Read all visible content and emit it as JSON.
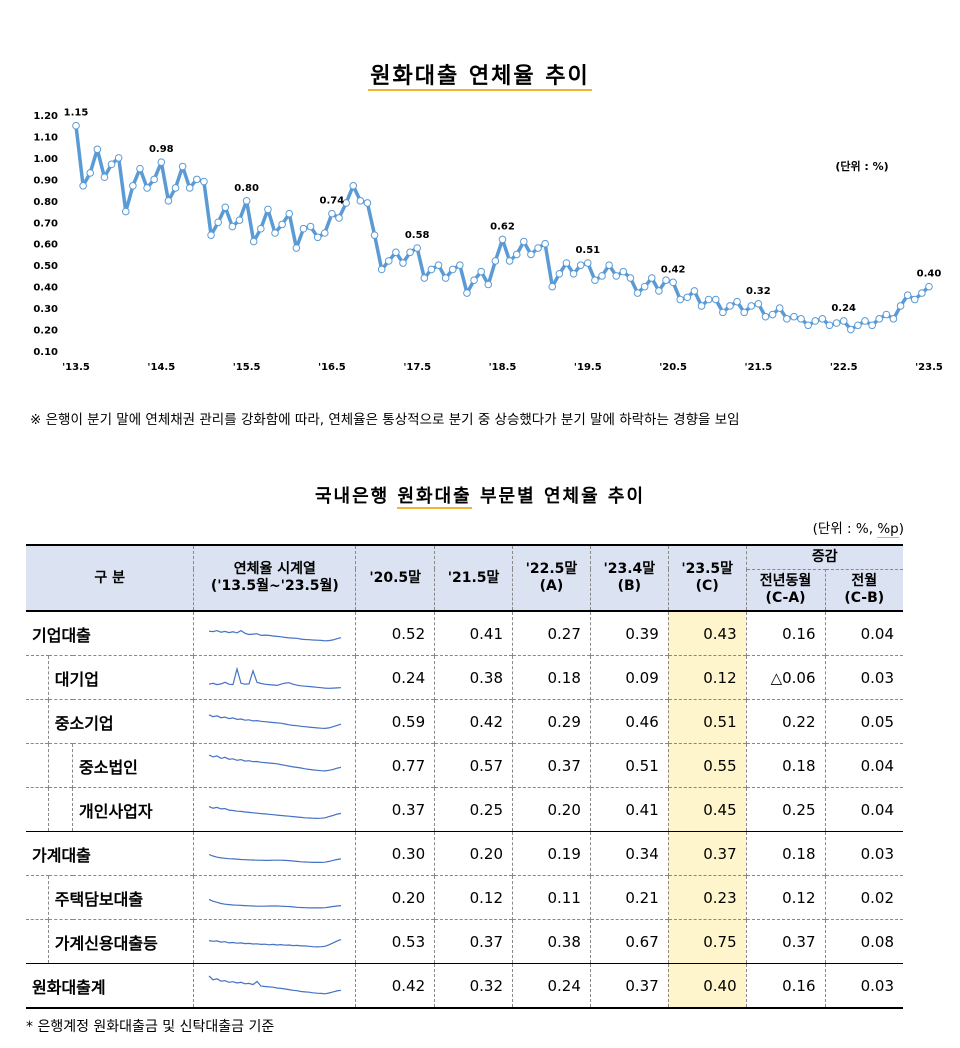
{
  "chart_title": "원화대출 연체율 추이",
  "note": "※ 은행이 분기 말에 연체채권 관리를 강화함에 따라, 연체율은 통상적으로 분기 중 상승했다가 분기 말에 하락하는 경향을 보임",
  "chart_data": {
    "type": "line",
    "title": "원화대출 연체율 추이",
    "unit_label": "(단위 : %)",
    "ylim": [
      0.1,
      1.2
    ],
    "yticks": [
      "0.10",
      "0.20",
      "0.30",
      "0.40",
      "0.50",
      "0.60",
      "0.70",
      "0.80",
      "0.90",
      "1.00",
      "1.10",
      "1.20"
    ],
    "xticks": [
      "'13.5",
      "'14.5",
      "'15.5",
      "'16.5",
      "'17.5",
      "'18.5",
      "'19.5",
      "'20.5",
      "'21.5",
      "'22.5",
      "'23.5"
    ],
    "grid": false,
    "color": "#5b9bd5",
    "annotations": [
      {
        "index": 0,
        "label": "1.15"
      },
      {
        "index": 12,
        "label": "0.98"
      },
      {
        "index": 24,
        "label": "0.80"
      },
      {
        "index": 36,
        "label": "0.74"
      },
      {
        "index": 48,
        "label": "0.58"
      },
      {
        "index": 60,
        "label": "0.62"
      },
      {
        "index": 72,
        "label": "0.51"
      },
      {
        "index": 84,
        "label": "0.42"
      },
      {
        "index": 96,
        "label": "0.32"
      },
      {
        "index": 108,
        "label": "0.24"
      },
      {
        "index": 120,
        "label": "0.40"
      }
    ],
    "series": [
      {
        "values": [
          1.15,
          0.87,
          0.93,
          1.04,
          0.91,
          0.97,
          1.0,
          0.75,
          0.87,
          0.95,
          0.86,
          0.9,
          0.98,
          0.8,
          0.86,
          0.96,
          0.86,
          0.9,
          0.89,
          0.64,
          0.7,
          0.77,
          0.68,
          0.71,
          0.8,
          0.61,
          0.67,
          0.76,
          0.65,
          0.69,
          0.74,
          0.58,
          0.67,
          0.68,
          0.63,
          0.65,
          0.74,
          0.72,
          0.79,
          0.87,
          0.8,
          0.79,
          0.64,
          0.48,
          0.52,
          0.56,
          0.51,
          0.56,
          0.58,
          0.44,
          0.48,
          0.5,
          0.44,
          0.48,
          0.5,
          0.37,
          0.43,
          0.47,
          0.41,
          0.52,
          0.62,
          0.52,
          0.55,
          0.61,
          0.55,
          0.58,
          0.6,
          0.4,
          0.46,
          0.51,
          0.46,
          0.5,
          0.51,
          0.43,
          0.45,
          0.5,
          0.45,
          0.47,
          0.44,
          0.37,
          0.4,
          0.44,
          0.38,
          0.43,
          0.42,
          0.34,
          0.35,
          0.38,
          0.31,
          0.34,
          0.34,
          0.28,
          0.31,
          0.33,
          0.28,
          0.31,
          0.32,
          0.26,
          0.27,
          0.3,
          0.25,
          0.26,
          0.25,
          0.22,
          0.24,
          0.25,
          0.22,
          0.23,
          0.24,
          0.2,
          0.22,
          0.24,
          0.22,
          0.25,
          0.27,
          0.25,
          0.31,
          0.36,
          0.34,
          0.37,
          0.4
        ]
      }
    ]
  },
  "table": {
    "title": "국내은행 원화대출 부문별 연체율 추이",
    "unit": "(단위 : %, %p)",
    "headers": {
      "category": "구    분",
      "series_line1": "연체율 시계열",
      "series_line2": "('13.5월~'23.5월)",
      "c1": "'20.5말",
      "c2": "'21.5말",
      "c3_line1": "'22.5말",
      "c3_line2": "(A)",
      "c4_line1": "'23.4말",
      "c4_line2": "(B)",
      "c5_line1": "'23.5말",
      "c5_line2": "(C)",
      "change": "증감",
      "yoy_line1": "전년동월",
      "yoy_line2": "(C-A)",
      "mom_line1": "전월",
      "mom_line2": "(C-B)"
    },
    "rows": [
      {
        "label": "기업대출",
        "v": [
          "0.52",
          "0.41",
          "0.27",
          "0.39",
          "0.43",
          "0.16",
          "0.04"
        ],
        "spark": [
          0.77,
          0.75,
          0.8,
          0.72,
          0.76,
          0.7,
          0.74,
          0.68,
          0.8,
          0.66,
          0.6,
          0.62,
          0.64,
          0.55,
          0.57,
          0.55,
          0.52,
          0.5,
          0.48,
          0.45,
          0.42,
          0.41,
          0.4,
          0.36,
          0.34,
          0.33,
          0.31,
          0.3,
          0.29,
          0.27,
          0.28,
          0.32,
          0.38,
          0.43
        ]
      },
      {
        "label": "대기업",
        "v": [
          "0.24",
          "0.38",
          "0.18",
          "0.09",
          "0.12",
          "△0.06",
          "0.03"
        ],
        "spark": [
          0.3,
          0.35,
          0.28,
          0.32,
          0.4,
          0.3,
          0.28,
          1.1,
          0.35,
          0.3,
          0.32,
          1.0,
          0.4,
          0.34,
          0.3,
          0.28,
          0.26,
          0.24,
          0.3,
          0.36,
          0.38,
          0.3,
          0.25,
          0.22,
          0.2,
          0.18,
          0.16,
          0.14,
          0.12,
          0.1,
          0.09,
          0.1,
          0.11,
          0.12
        ]
      },
      {
        "label": "중소기업",
        "v": [
          "0.59",
          "0.42",
          "0.29",
          "0.46",
          "0.51",
          "0.22",
          "0.05"
        ],
        "spark": [
          1.0,
          0.9,
          0.95,
          0.85,
          0.88,
          0.8,
          0.84,
          0.76,
          0.78,
          0.72,
          0.74,
          0.68,
          0.7,
          0.66,
          0.64,
          0.62,
          0.6,
          0.58,
          0.56,
          0.52,
          0.48,
          0.45,
          0.43,
          0.4,
          0.38,
          0.36,
          0.34,
          0.32,
          0.3,
          0.29,
          0.32,
          0.38,
          0.45,
          0.51
        ]
      },
      {
        "label": "중소법인",
        "v": [
          "0.77",
          "0.57",
          "0.37",
          "0.51",
          "0.55",
          "0.18",
          "0.04"
        ],
        "spark": [
          1.2,
          1.1,
          1.15,
          1.02,
          1.08,
          0.98,
          1.0,
          0.92,
          0.96,
          0.88,
          0.9,
          0.85,
          0.86,
          0.82,
          0.8,
          0.78,
          0.76,
          0.74,
          0.7,
          0.66,
          0.62,
          0.58,
          0.55,
          0.52,
          0.48,
          0.45,
          0.42,
          0.4,
          0.38,
          0.37,
          0.4,
          0.45,
          0.51,
          0.55
        ]
      },
      {
        "label": "개인사업자",
        "v": [
          "0.37",
          "0.25",
          "0.20",
          "0.41",
          "0.45",
          "0.25",
          "0.04"
        ],
        "spark": [
          0.8,
          0.72,
          0.76,
          0.68,
          0.7,
          0.62,
          0.6,
          0.56,
          0.55,
          0.52,
          0.5,
          0.48,
          0.46,
          0.44,
          0.42,
          0.4,
          0.38,
          0.36,
          0.34,
          0.32,
          0.3,
          0.28,
          0.26,
          0.24,
          0.22,
          0.21,
          0.2,
          0.19,
          0.2,
          0.22,
          0.28,
          0.34,
          0.41,
          0.45
        ]
      },
      {
        "label": "가계대출",
        "v": [
          "0.30",
          "0.20",
          "0.19",
          "0.34",
          "0.37",
          "0.18",
          "0.03"
        ],
        "spark": [
          0.6,
          0.52,
          0.46,
          0.42,
          0.4,
          0.38,
          0.37,
          0.36,
          0.34,
          0.33,
          0.32,
          0.31,
          0.3,
          0.3,
          0.29,
          0.29,
          0.3,
          0.3,
          0.3,
          0.29,
          0.28,
          0.26,
          0.24,
          0.22,
          0.21,
          0.2,
          0.19,
          0.19,
          0.19,
          0.2,
          0.24,
          0.29,
          0.34,
          0.37
        ]
      },
      {
        "label": "주택담보대출",
        "v": [
          "0.20",
          "0.12",
          "0.11",
          "0.21",
          "0.23",
          "0.12",
          "0.02"
        ],
        "spark": [
          0.55,
          0.46,
          0.4,
          0.34,
          0.3,
          0.28,
          0.26,
          0.25,
          0.24,
          0.23,
          0.22,
          0.21,
          0.2,
          0.2,
          0.2,
          0.21,
          0.21,
          0.21,
          0.2,
          0.19,
          0.18,
          0.16,
          0.14,
          0.13,
          0.12,
          0.11,
          0.11,
          0.11,
          0.11,
          0.12,
          0.15,
          0.18,
          0.21,
          0.23
        ]
      },
      {
        "label": "가계신용대출등",
        "v": [
          "0.53",
          "0.37",
          "0.38",
          "0.67",
          "0.75",
          "0.37",
          "0.08"
        ],
        "spark": [
          0.7,
          0.66,
          0.68,
          0.62,
          0.64,
          0.58,
          0.6,
          0.56,
          0.58,
          0.54,
          0.55,
          0.52,
          0.53,
          0.5,
          0.51,
          0.48,
          0.5,
          0.47,
          0.49,
          0.46,
          0.47,
          0.44,
          0.45,
          0.42,
          0.42,
          0.4,
          0.38,
          0.37,
          0.38,
          0.4,
          0.48,
          0.58,
          0.67,
          0.75
        ]
      },
      {
        "label": "원화대출계",
        "v": [
          "0.42",
          "0.32",
          "0.24",
          "0.37",
          "0.40",
          "0.16",
          "0.03"
        ],
        "spark": [
          1.15,
          0.95,
          1.0,
          0.88,
          0.9,
          0.82,
          0.85,
          0.78,
          0.82,
          0.74,
          0.76,
          0.7,
          0.86,
          0.62,
          0.6,
          0.58,
          0.56,
          0.52,
          0.5,
          0.47,
          0.44,
          0.4,
          0.38,
          0.34,
          0.32,
          0.3,
          0.27,
          0.25,
          0.24,
          0.22,
          0.26,
          0.32,
          0.37,
          0.4
        ]
      }
    ]
  },
  "footnote": "* 은행계정 원화대출금 및 신탁대출금 기준"
}
